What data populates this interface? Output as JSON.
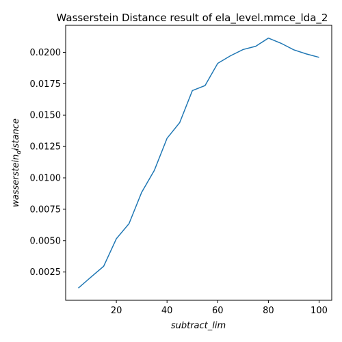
{
  "chart_data": {
    "type": "line",
    "title": "Wasserstein Distance result of ela_level.mmce_lda_2",
    "xlabel": "subtract_lim",
    "ylabel_main": "wasserstein",
    "ylabel_sub": "d",
    "ylabel_tail": "istance",
    "xlim": [
      0,
      105
    ],
    "ylim": [
      0.00025,
      0.02215
    ],
    "x_ticks": [
      20,
      40,
      60,
      80,
      100
    ],
    "x_tick_labels": [
      "20",
      "40",
      "60",
      "80",
      "100"
    ],
    "y_ticks": [
      0.0025,
      0.005,
      0.0075,
      0.01,
      0.0125,
      0.015,
      0.0175,
      0.02
    ],
    "y_tick_labels": [
      "0.0025",
      "0.0050",
      "0.0075",
      "0.0100",
      "0.0125",
      "0.0150",
      "0.0175",
      "0.0200"
    ],
    "grid": false,
    "line_color": "#1f77b4",
    "series": [
      {
        "x": [
          5,
          10,
          15,
          20,
          25,
          30,
          35,
          40,
          45,
          50,
          55,
          60,
          65,
          70,
          75,
          80,
          85,
          90,
          95,
          100
        ],
        "values": [
          0.00122,
          0.0021,
          0.00296,
          0.00515,
          0.00635,
          0.00885,
          0.0106,
          0.01315,
          0.0144,
          0.01695,
          0.01735,
          0.01912,
          0.01972,
          0.02022,
          0.02048,
          0.02113,
          0.02072,
          0.0202,
          0.01987,
          0.0196
        ]
      }
    ]
  }
}
